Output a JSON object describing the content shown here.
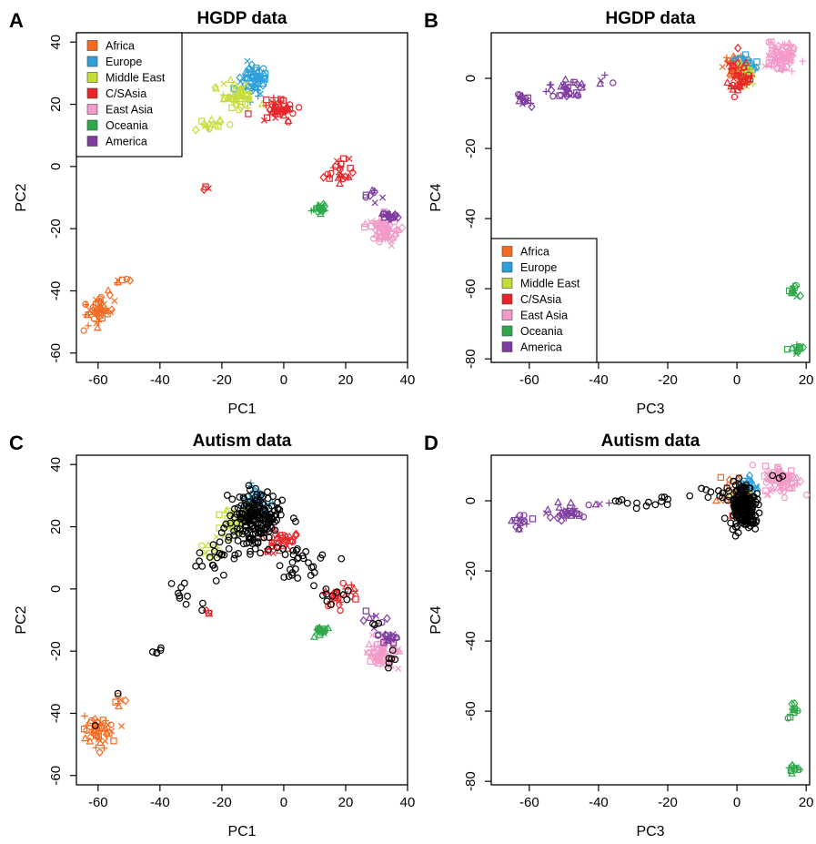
{
  "legend_entries": [
    {
      "label": "Africa",
      "color": "#f26b21"
    },
    {
      "label": "Europe",
      "color": "#2f9fd8"
    },
    {
      "label": "Middle East",
      "color": "#c6dc3a"
    },
    {
      "label": "C/SAsia",
      "color": "#e8262a"
    },
    {
      "label": "East Asia",
      "color": "#f29ac8"
    },
    {
      "label": "Oceania",
      "color": "#2ea84a"
    },
    {
      "label": "America",
      "color": "#7e3ca0"
    }
  ],
  "autism_color": "#000000",
  "chart_data": [
    {
      "id": "A",
      "letter": "A",
      "type": "scatter",
      "title": "HGDP data",
      "xlabel": "PC1",
      "ylabel": "PC2",
      "xlim": [
        -67,
        40
      ],
      "ylim": [
        -63,
        43
      ],
      "xticks": [
        -60,
        -40,
        -20,
        0,
        20,
        40
      ],
      "yticks": [
        -60,
        -40,
        -20,
        0,
        20,
        40
      ],
      "xtick_labels": [
        "-60",
        "-40",
        "-20",
        "0",
        "20",
        "40"
      ],
      "ytick_labels": [
        "-60",
        "-40",
        "-20",
        "0",
        "20",
        "40"
      ],
      "legend": "top-left",
      "clusters": [
        {
          "group": "Africa",
          "cx": -60,
          "cy": -46,
          "sx": 2.5,
          "sy": 2.5,
          "n": 45
        },
        {
          "group": "Africa",
          "cx": -53,
          "cy": -37,
          "sx": 1.2,
          "sy": 1.2,
          "n": 6
        },
        {
          "group": "Europe",
          "cx": -9,
          "cy": 28,
          "sx": 2.2,
          "sy": 2.5,
          "n": 60
        },
        {
          "group": "Middle East",
          "cx": -15,
          "cy": 23,
          "sx": 2.5,
          "sy": 3,
          "n": 45
        },
        {
          "group": "Middle East",
          "cx": -23,
          "cy": 13,
          "sx": 2.5,
          "sy": 2,
          "n": 14
        },
        {
          "group": "C/SAsia",
          "cx": -2,
          "cy": 18,
          "sx": 3,
          "sy": 2,
          "n": 45
        },
        {
          "group": "C/SAsia",
          "cx": 18,
          "cy": -2,
          "sx": 2.5,
          "sy": 2,
          "n": 25
        },
        {
          "group": "C/SAsia",
          "cx": -25,
          "cy": -8,
          "sx": 0.7,
          "sy": 1,
          "n": 3
        },
        {
          "group": "East Asia",
          "cx": 32,
          "cy": -21,
          "sx": 2.5,
          "sy": 2.3,
          "n": 70
        },
        {
          "group": "Oceania",
          "cx": 12,
          "cy": -14,
          "sx": 1.2,
          "sy": 0.8,
          "n": 20
        },
        {
          "group": "America",
          "cx": 34,
          "cy": -16,
          "sx": 1.5,
          "sy": 1,
          "n": 22
        },
        {
          "group": "America",
          "cx": 28,
          "cy": -10,
          "sx": 2,
          "sy": 1.5,
          "n": 8
        }
      ]
    },
    {
      "id": "B",
      "letter": "B",
      "type": "scatter",
      "title": "HGDP data",
      "xlabel": "PC3",
      "ylabel": "PC4",
      "xlim": [
        -71,
        21
      ],
      "ylim": [
        -81,
        13
      ],
      "xticks": [
        -60,
        -40,
        -20,
        0,
        20
      ],
      "yticks": [
        -80,
        -60,
        -40,
        -20,
        0
      ],
      "xtick_labels": [
        "-60",
        "-40",
        "-20",
        "0",
        "20"
      ],
      "ytick_labels": [
        "-80",
        "-60",
        "-40",
        "-20",
        "0"
      ],
      "legend": "bottom-left",
      "clusters": [
        {
          "group": "America",
          "cx": -62,
          "cy": -6,
          "sx": 1.5,
          "sy": 1.5,
          "n": 15
        },
        {
          "group": "America",
          "cx": -49,
          "cy": -3,
          "sx": 3,
          "sy": 1.2,
          "n": 30
        },
        {
          "group": "America",
          "cx": -38,
          "cy": -1,
          "sx": 2,
          "sy": 1,
          "n": 4
        },
        {
          "group": "Africa",
          "cx": -1,
          "cy": 3,
          "sx": 1.5,
          "sy": 2,
          "n": 30
        },
        {
          "group": "Europe",
          "cx": 3,
          "cy": 4,
          "sx": 1.5,
          "sy": 1.5,
          "n": 35
        },
        {
          "group": "Middle East",
          "cx": 2,
          "cy": 1,
          "sx": 1.5,
          "sy": 2,
          "n": 35
        },
        {
          "group": "C/SAsia",
          "cx": 1,
          "cy": 0,
          "sx": 2,
          "sy": 2.5,
          "n": 45
        },
        {
          "group": "East Asia",
          "cx": 13,
          "cy": 6,
          "sx": 2.5,
          "sy": 2,
          "n": 80
        },
        {
          "group": "Oceania",
          "cx": 16.5,
          "cy": -60,
          "sx": 1,
          "sy": 1.3,
          "n": 12
        },
        {
          "group": "Oceania",
          "cx": 16.5,
          "cy": -76.5,
          "sx": 1,
          "sy": 0.8,
          "n": 12
        }
      ]
    },
    {
      "id": "C",
      "letter": "C",
      "type": "scatter",
      "title": "Autism data",
      "xlabel": "PC1",
      "ylabel": "PC2",
      "xlim": [
        -67,
        40
      ],
      "ylim": [
        -63,
        43
      ],
      "xticks": [
        -60,
        -40,
        -20,
        0,
        20,
        40
      ],
      "yticks": [
        -60,
        -40,
        -20,
        0,
        20,
        40
      ],
      "xtick_labels": [
        "-60",
        "-40",
        "-20",
        "0",
        "20",
        "40"
      ],
      "ytick_labels": [
        "-60",
        "-40",
        "-20",
        "0",
        "20",
        "40"
      ],
      "legend": "none",
      "clusters": [
        {
          "group": "Africa",
          "cx": -60,
          "cy": -46,
          "sx": 2.5,
          "sy": 2.5,
          "n": 45
        },
        {
          "group": "Africa",
          "cx": -53,
          "cy": -37,
          "sx": 1.2,
          "sy": 1.2,
          "n": 6
        },
        {
          "group": "Europe",
          "cx": -9,
          "cy": 28,
          "sx": 2.2,
          "sy": 2.5,
          "n": 50
        },
        {
          "group": "Middle East",
          "cx": -16,
          "cy": 22,
          "sx": 2.5,
          "sy": 3,
          "n": 35
        },
        {
          "group": "Middle East",
          "cx": -23,
          "cy": 13,
          "sx": 2.5,
          "sy": 2,
          "n": 12
        },
        {
          "group": "C/SAsia",
          "cx": -2,
          "cy": 15,
          "sx": 3,
          "sy": 2,
          "n": 35
        },
        {
          "group": "C/SAsia",
          "cx": 18,
          "cy": -2,
          "sx": 2.5,
          "sy": 2,
          "n": 25
        },
        {
          "group": "C/SAsia",
          "cx": -25,
          "cy": -8,
          "sx": 0.7,
          "sy": 1,
          "n": 3
        },
        {
          "group": "East Asia",
          "cx": 32,
          "cy": -21,
          "sx": 2.5,
          "sy": 2.3,
          "n": 70
        },
        {
          "group": "Oceania",
          "cx": 12,
          "cy": -14,
          "sx": 1.2,
          "sy": 0.8,
          "n": 20
        },
        {
          "group": "America",
          "cx": 34,
          "cy": -16,
          "sx": 1.5,
          "sy": 1,
          "n": 22
        },
        {
          "group": "America",
          "cx": 28,
          "cy": -10,
          "sx": 2,
          "sy": 1.5,
          "n": 8
        },
        {
          "group": "Autism",
          "cx": -8,
          "cy": 23,
          "sx": 4,
          "sy": 4,
          "n": 160
        },
        {
          "group": "Autism",
          "cx": -14,
          "cy": 18,
          "sx": 3,
          "sy": 3,
          "n": 40
        },
        {
          "group": "Autism",
          "cx": -22,
          "cy": 9,
          "sx": 3,
          "sy": 3,
          "n": 16
        },
        {
          "group": "Autism",
          "cx": -32,
          "cy": -2,
          "sx": 3,
          "sy": 2,
          "n": 10
        },
        {
          "group": "Autism",
          "cx": -41,
          "cy": -20,
          "sx": 1,
          "sy": 1,
          "n": 5
        },
        {
          "group": "Autism",
          "cx": 5,
          "cy": 8,
          "sx": 4,
          "sy": 3,
          "n": 30
        },
        {
          "group": "Autism",
          "cx": 16,
          "cy": -2,
          "sx": 3,
          "sy": 2,
          "n": 10
        },
        {
          "group": "Autism",
          "cx": 34,
          "cy": -22,
          "sx": 1,
          "sy": 1.5,
          "n": 6
        },
        {
          "group": "Autism",
          "cx": 28,
          "cy": -12,
          "sx": 1.5,
          "sy": 1,
          "n": 3
        },
        {
          "group": "Autism",
          "cx": -53,
          "cy": -33,
          "sx": 0.5,
          "sy": 0.5,
          "n": 1
        },
        {
          "group": "Autism",
          "cx": -61,
          "cy": -45,
          "sx": 0.5,
          "sy": 0.5,
          "n": 1
        }
      ]
    },
    {
      "id": "D",
      "letter": "D",
      "type": "scatter",
      "title": "Autism data",
      "xlabel": "PC3",
      "ylabel": "PC4",
      "xlim": [
        -71,
        21
      ],
      "ylim": [
        -81,
        13
      ],
      "xticks": [
        -60,
        -40,
        -20,
        0,
        20
      ],
      "yticks": [
        -80,
        -60,
        -40,
        -20,
        0
      ],
      "xtick_labels": [
        "-60",
        "-40",
        "-20",
        "0",
        "20"
      ],
      "ytick_labels": [
        "-80",
        "-60",
        "-40",
        "-20",
        "0"
      ],
      "legend": "none",
      "clusters": [
        {
          "group": "America",
          "cx": -62,
          "cy": -6,
          "sx": 1.5,
          "sy": 1.5,
          "n": 15
        },
        {
          "group": "America",
          "cx": -49,
          "cy": -3,
          "sx": 3,
          "sy": 1.2,
          "n": 30
        },
        {
          "group": "America",
          "cx": -38,
          "cy": -1,
          "sx": 2,
          "sy": 1,
          "n": 4
        },
        {
          "group": "Africa",
          "cx": -1,
          "cy": 3,
          "sx": 1.5,
          "sy": 2,
          "n": 25
        },
        {
          "group": "Europe",
          "cx": 3,
          "cy": 4,
          "sx": 1.5,
          "sy": 1.5,
          "n": 30
        },
        {
          "group": "Middle East",
          "cx": 2,
          "cy": 1,
          "sx": 1.5,
          "sy": 2,
          "n": 30
        },
        {
          "group": "C/SAsia",
          "cx": 1,
          "cy": 0,
          "sx": 2,
          "sy": 2.5,
          "n": 30
        },
        {
          "group": "East Asia",
          "cx": 13,
          "cy": 6,
          "sx": 2.5,
          "sy": 2,
          "n": 80
        },
        {
          "group": "Oceania",
          "cx": 16.5,
          "cy": -60,
          "sx": 1,
          "sy": 1.3,
          "n": 12
        },
        {
          "group": "Oceania",
          "cx": 16.5,
          "cy": -76.5,
          "sx": 1,
          "sy": 0.8,
          "n": 12
        },
        {
          "group": "Autism",
          "cx": 1.5,
          "cy": -1,
          "sx": 1.8,
          "sy": 3,
          "n": 160
        },
        {
          "group": "Autism",
          "cx": 4,
          "cy": -5,
          "sx": 1.2,
          "sy": 2,
          "n": 25
        },
        {
          "group": "Autism",
          "cx": -8,
          "cy": 2.5,
          "sx": 3,
          "sy": 1,
          "n": 10
        },
        {
          "group": "Autism",
          "cx": -22,
          "cy": -0.5,
          "sx": 3.5,
          "sy": 1,
          "n": 10
        },
        {
          "group": "Autism",
          "cx": -33,
          "cy": -0.5,
          "sx": 2,
          "sy": 0.8,
          "n": 4
        },
        {
          "group": "Autism",
          "cx": 12,
          "cy": 7,
          "sx": 0.7,
          "sy": 0.7,
          "n": 3
        }
      ]
    }
  ]
}
